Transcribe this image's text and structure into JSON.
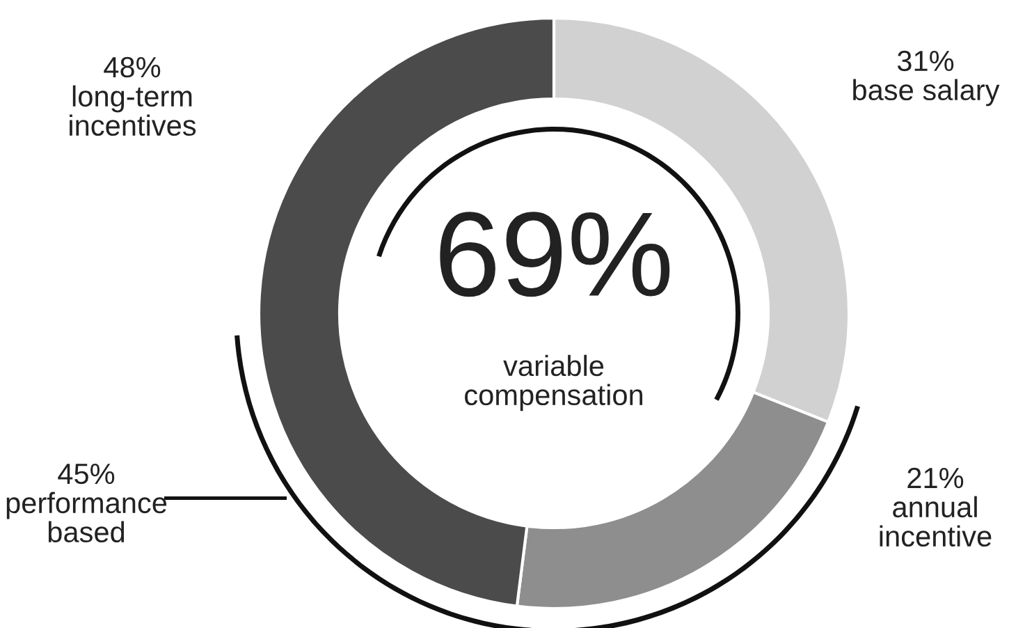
{
  "chart_data": {
    "type": "donut",
    "categories": [
      "base salary",
      "annual incentive",
      "long-term incentives"
    ],
    "values": [
      31,
      21,
      48
    ],
    "colors": [
      "#d1d1d1",
      "#8e8e8e",
      "#4b4b4b"
    ],
    "value_labels": [
      "31%",
      "21%",
      "48%"
    ],
    "annotations": [
      "69%",
      "variable compensation",
      "45%",
      "performance based"
    ]
  }
}
